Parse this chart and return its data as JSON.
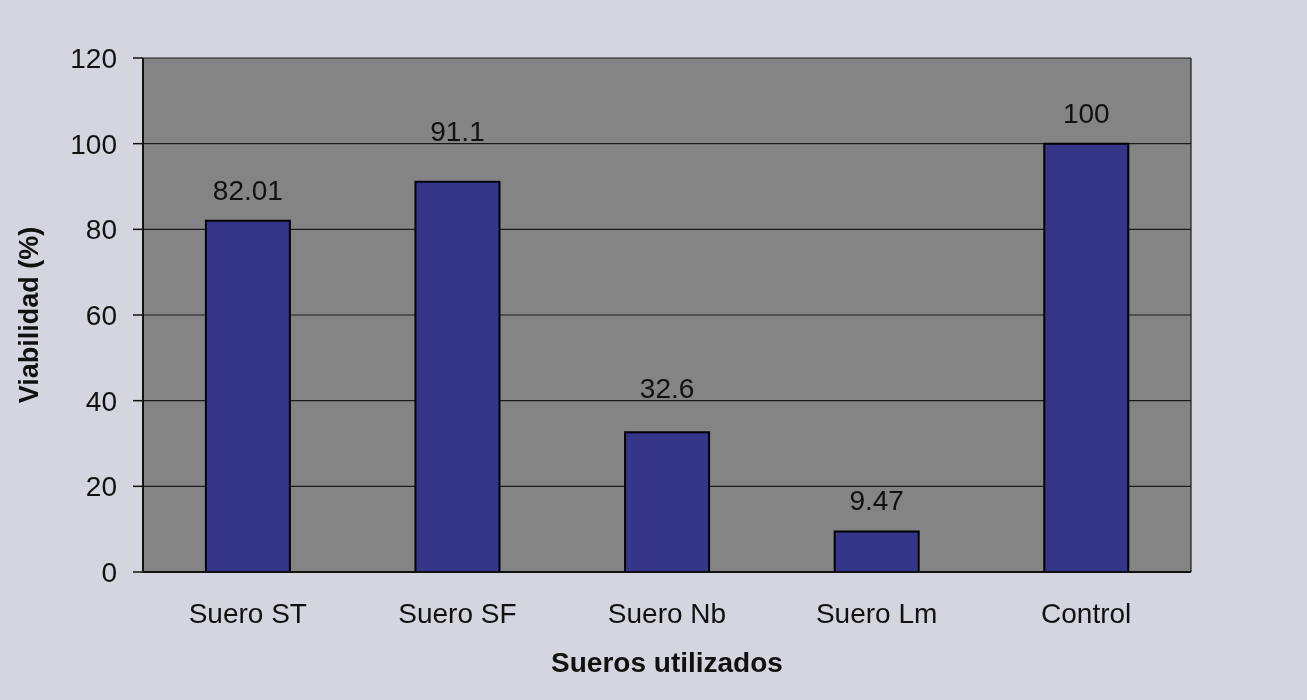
{
  "chart_data": {
    "type": "bar",
    "categories": [
      "Suero ST",
      "Suero SF",
      "Suero Nb",
      "Suero Lm",
      "Control"
    ],
    "values": [
      82.01,
      91.1,
      32.6,
      9.47,
      100
    ],
    "color": "#35358a",
    "xlabel": "Sueros utilizados",
    "ylabel": "Viabilidad (%)",
    "ylim": [
      0,
      120
    ],
    "yticks": [
      0,
      20,
      40,
      60,
      80,
      100,
      120
    ],
    "grid": "y",
    "data_labels": true
  }
}
